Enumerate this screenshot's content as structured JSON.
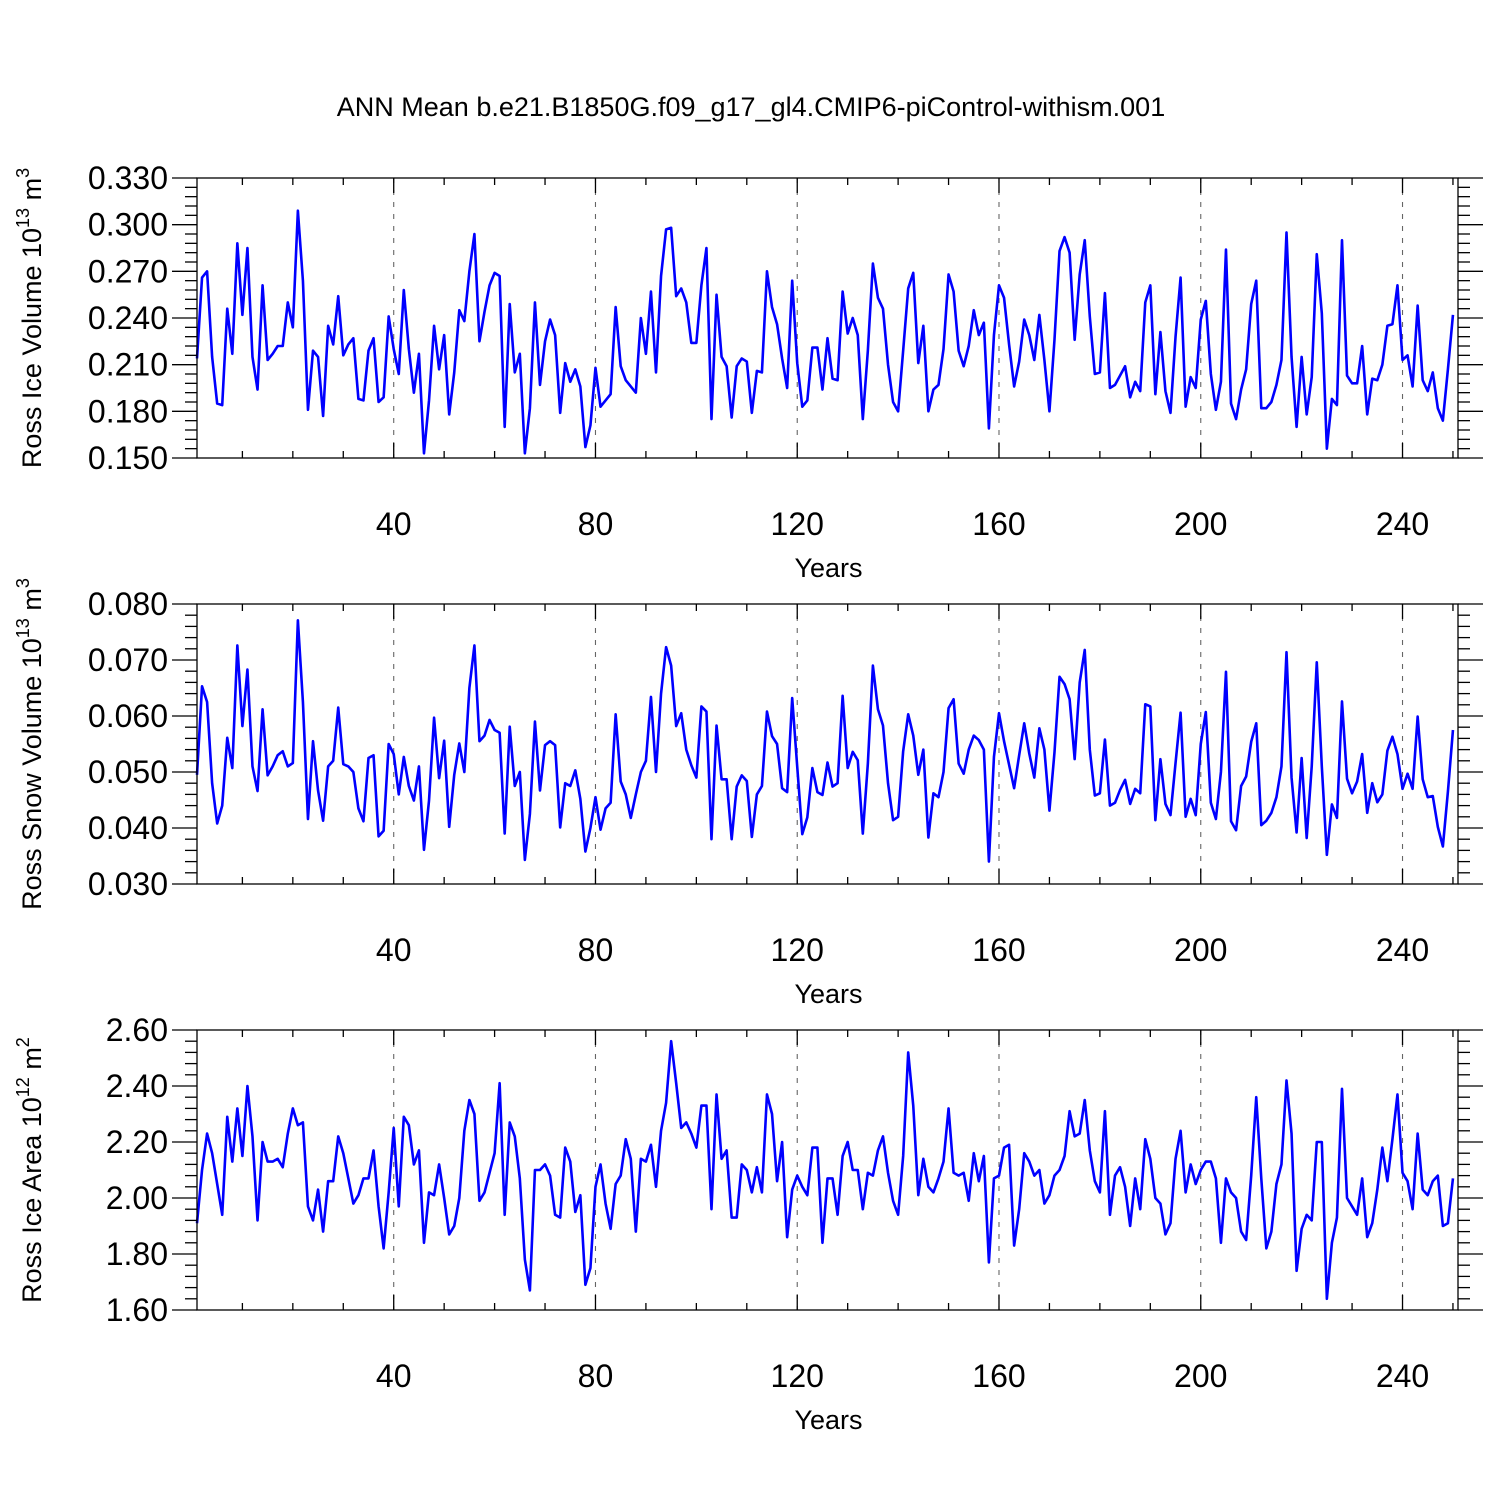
{
  "title": "ANN Mean b.e21.B1850G.f09_g17_gl4.CMIP6-piControl-withism.001",
  "line_color": "#0000ff",
  "chart_data": [
    {
      "type": "line",
      "xlabel": "Years",
      "ylabel": {
        "text": "Ross Ice Volume 10",
        "sup": "13",
        "unit": " m",
        "unit_sup": "3"
      },
      "xlim": [
        1,
        251
      ],
      "ylim": [
        0.15,
        0.33
      ],
      "xticks": [
        40,
        80,
        120,
        160,
        200,
        240
      ],
      "yticks": [
        "0.150",
        "0.180",
        "0.210",
        "0.240",
        "0.270",
        "0.300",
        "0.330"
      ],
      "grid": "dashed vertical lines at labeled x ticks",
      "series": [
        {
          "values": [
            0.214,
            0.266,
            0.27,
            0.215,
            0.185,
            0.184,
            0.246,
            0.217,
            0.288,
            0.242,
            0.285,
            0.215,
            0.194,
            0.261,
            0.213,
            0.217,
            0.222,
            0.222,
            0.25,
            0.234,
            0.309,
            0.264,
            0.181,
            0.219,
            0.215,
            0.177,
            0.235,
            0.223,
            0.254,
            0.216,
            0.223,
            0.227,
            0.188,
            0.187,
            0.219,
            0.227,
            0.186,
            0.189,
            0.241,
            0.22,
            0.204,
            0.258,
            0.22,
            0.192,
            0.217,
            0.153,
            0.187,
            0.235,
            0.207,
            0.229,
            0.178,
            0.205,
            0.245,
            0.238,
            0.27,
            0.294,
            0.225,
            0.244,
            0.261,
            0.269,
            0.267,
            0.17,
            0.249,
            0.205,
            0.217,
            0.153,
            0.182,
            0.25,
            0.197,
            0.225,
            0.239,
            0.229,
            0.179,
            0.211,
            0.199,
            0.207,
            0.196,
            0.157,
            0.171,
            0.208,
            0.183,
            0.187,
            0.191,
            0.247,
            0.209,
            0.2,
            0.196,
            0.192,
            0.24,
            0.217,
            0.257,
            0.205,
            0.267,
            0.297,
            0.298,
            0.254,
            0.259,
            0.25,
            0.224,
            0.224,
            0.261,
            0.285,
            0.175,
            0.255,
            0.215,
            0.209,
            0.176,
            0.209,
            0.214,
            0.212,
            0.179,
            0.206,
            0.205,
            0.27,
            0.247,
            0.236,
            0.214,
            0.195,
            0.264,
            0.211,
            0.183,
            0.187,
            0.221,
            0.221,
            0.194,
            0.227,
            0.201,
            0.2,
            0.257,
            0.23,
            0.24,
            0.229,
            0.175,
            0.219,
            0.275,
            0.253,
            0.246,
            0.21,
            0.186,
            0.18,
            0.219,
            0.259,
            0.269,
            0.211,
            0.235,
            0.18,
            0.194,
            0.197,
            0.22,
            0.268,
            0.257,
            0.219,
            0.209,
            0.222,
            0.245,
            0.229,
            0.237,
            0.169,
            0.229,
            0.261,
            0.253,
            0.223,
            0.196,
            0.212,
            0.239,
            0.229,
            0.213,
            0.242,
            0.213,
            0.18,
            0.226,
            0.283,
            0.292,
            0.282,
            0.226,
            0.268,
            0.29,
            0.241,
            0.204,
            0.205,
            0.256,
            0.195,
            0.197,
            0.203,
            0.209,
            0.189,
            0.199,
            0.193,
            0.25,
            0.261,
            0.191,
            0.231,
            0.193,
            0.179,
            0.228,
            0.266,
            0.183,
            0.202,
            0.195,
            0.239,
            0.251,
            0.204,
            0.181,
            0.199,
            0.284,
            0.185,
            0.175,
            0.194,
            0.207,
            0.249,
            0.264,
            0.182,
            0.182,
            0.186,
            0.197,
            0.213,
            0.295,
            0.215,
            0.17,
            0.215,
            0.178,
            0.202,
            0.281,
            0.243,
            0.156,
            0.188,
            0.184,
            0.29,
            0.203,
            0.198,
            0.198,
            0.222,
            0.178,
            0.201,
            0.2,
            0.21,
            0.235,
            0.236,
            0.261,
            0.213,
            0.216,
            0.196,
            0.248,
            0.2,
            0.193,
            0.205,
            0.182,
            0.174,
            0.207,
            0.242
          ]
        }
      ]
    },
    {
      "type": "line",
      "xlabel": "Years",
      "ylabel": {
        "text": "Ross Snow Volume 10",
        "sup": "13",
        "unit": " m",
        "unit_sup": "3"
      },
      "xlim": [
        1,
        251
      ],
      "ylim": [
        0.03,
        0.08
      ],
      "xticks": [
        40,
        80,
        120,
        160,
        200,
        240
      ],
      "yticks": [
        "0.030",
        "0.040",
        "0.050",
        "0.060",
        "0.070",
        "0.080"
      ],
      "grid": "dashed vertical lines at labeled x ticks",
      "series": [
        {
          "values": [
            0.0495,
            0.0653,
            0.0625,
            0.048,
            0.0408,
            0.044,
            0.0561,
            0.0507,
            0.0726,
            0.0582,
            0.0683,
            0.051,
            0.0466,
            0.0612,
            0.0494,
            0.051,
            0.053,
            0.0537,
            0.051,
            0.0516,
            0.0771,
            0.0625,
            0.0416,
            0.0555,
            0.0467,
            0.0413,
            0.051,
            0.052,
            0.0615,
            0.0514,
            0.051,
            0.05,
            0.0435,
            0.0412,
            0.0525,
            0.053,
            0.0385,
            0.0395,
            0.055,
            0.0532,
            0.046,
            0.0527,
            0.0475,
            0.0449,
            0.051,
            0.0361,
            0.0449,
            0.0597,
            0.0489,
            0.0556,
            0.0402,
            0.0495,
            0.0551,
            0.05,
            0.065,
            0.0726,
            0.0555,
            0.0565,
            0.0593,
            0.0575,
            0.057,
            0.039,
            0.0581,
            0.0475,
            0.05,
            0.0343,
            0.0425,
            0.059,
            0.0467,
            0.0548,
            0.0555,
            0.0548,
            0.0401,
            0.048,
            0.0475,
            0.0503,
            0.0452,
            0.0358,
            0.04,
            0.0455,
            0.0397,
            0.0435,
            0.0445,
            0.0603,
            0.0483,
            0.046,
            0.0418,
            0.046,
            0.05,
            0.052,
            0.0634,
            0.05,
            0.064,
            0.0723,
            0.069,
            0.0582,
            0.0605,
            0.054,
            0.0512,
            0.049,
            0.0617,
            0.0608,
            0.038,
            0.0583,
            0.0487,
            0.0487,
            0.038,
            0.0474,
            0.0494,
            0.0484,
            0.0384,
            0.046,
            0.0475,
            0.0608,
            0.0564,
            0.055,
            0.0471,
            0.0464,
            0.0632,
            0.0509,
            0.0389,
            0.0419,
            0.0507,
            0.0464,
            0.0459,
            0.0517,
            0.0474,
            0.048,
            0.0636,
            0.0507,
            0.0536,
            0.0521,
            0.039,
            0.0515,
            0.069,
            0.0612,
            0.0583,
            0.048,
            0.0414,
            0.042,
            0.0537,
            0.0603,
            0.0565,
            0.0495,
            0.054,
            0.0383,
            0.0462,
            0.0455,
            0.05,
            0.0614,
            0.063,
            0.0515,
            0.0497,
            0.054,
            0.0565,
            0.0557,
            0.054,
            0.034,
            0.0527,
            0.0605,
            0.0555,
            0.0513,
            0.0471,
            0.053,
            0.0587,
            0.0533,
            0.049,
            0.0578,
            0.054,
            0.0431,
            0.0535,
            0.067,
            0.0657,
            0.063,
            0.0523,
            0.066,
            0.0718,
            0.054,
            0.0458,
            0.0462,
            0.0558,
            0.044,
            0.0445,
            0.0468,
            0.0486,
            0.0443,
            0.047,
            0.0462,
            0.0621,
            0.0617,
            0.0414,
            0.0523,
            0.0443,
            0.0423,
            0.0516,
            0.0606,
            0.042,
            0.0452,
            0.0423,
            0.055,
            0.0607,
            0.0445,
            0.0416,
            0.05,
            0.0679,
            0.0412,
            0.0396,
            0.0475,
            0.0492,
            0.0554,
            0.0587,
            0.0405,
            0.0413,
            0.0427,
            0.0455,
            0.051,
            0.0714,
            0.049,
            0.0392,
            0.0525,
            0.0382,
            0.051,
            0.0696,
            0.051,
            0.0352,
            0.0442,
            0.0418,
            0.0626,
            0.0488,
            0.0462,
            0.0483,
            0.0532,
            0.0427,
            0.048,
            0.0446,
            0.046,
            0.0538,
            0.0563,
            0.0532,
            0.047,
            0.0497,
            0.047,
            0.0599,
            0.0487,
            0.0455,
            0.0457,
            0.0402,
            0.0367,
            0.0465,
            0.0575
          ]
        }
      ]
    },
    {
      "type": "line",
      "xlabel": "Years",
      "ylabel": {
        "text": "Ross Ice Area 10",
        "sup": "12",
        "unit": " m",
        "unit_sup": "2"
      },
      "xlim": [
        1,
        251
      ],
      "ylim": [
        1.6,
        2.6
      ],
      "xticks": [
        40,
        80,
        120,
        160,
        200,
        240
      ],
      "yticks": [
        "1.60",
        "1.80",
        "2.00",
        "2.20",
        "2.40",
        "2.60"
      ],
      "grid": "dashed vertical lines at labeled x ticks",
      "series": [
        {
          "values": [
            1.91,
            2.1,
            2.23,
            2.16,
            2.05,
            1.94,
            2.29,
            2.13,
            2.32,
            2.15,
            2.4,
            2.22,
            1.92,
            2.2,
            2.13,
            2.13,
            2.14,
            2.11,
            2.23,
            2.32,
            2.26,
            2.27,
            1.97,
            1.92,
            2.03,
            1.88,
            2.06,
            2.06,
            2.22,
            2.16,
            2.07,
            1.98,
            2.01,
            2.07,
            2.07,
            2.17,
            1.97,
            1.82,
            2.02,
            2.25,
            1.97,
            2.29,
            2.26,
            2.12,
            2.17,
            1.84,
            2.02,
            2.01,
            2.12,
            2.0,
            1.87,
            1.9,
            2.0,
            2.24,
            2.35,
            2.3,
            1.99,
            2.02,
            2.09,
            2.16,
            2.41,
            1.94,
            2.27,
            2.22,
            2.07,
            1.78,
            1.67,
            2.1,
            2.1,
            2.12,
            2.08,
            1.94,
            1.93,
            2.18,
            2.13,
            1.95,
            2.01,
            1.69,
            1.75,
            2.04,
            2.12,
            1.98,
            1.89,
            2.05,
            2.08,
            2.21,
            2.14,
            1.88,
            2.14,
            2.13,
            2.19,
            2.04,
            2.24,
            2.34,
            2.56,
            2.41,
            2.25,
            2.27,
            2.23,
            2.18,
            2.33,
            2.33,
            1.96,
            2.37,
            2.14,
            2.17,
            1.93,
            1.93,
            2.12,
            2.1,
            2.02,
            2.11,
            2.02,
            2.37,
            2.3,
            2.06,
            2.2,
            1.86,
            2.03,
            2.08,
            2.04,
            2.01,
            2.18,
            2.18,
            1.84,
            2.07,
            2.07,
            1.94,
            2.15,
            2.2,
            2.1,
            2.1,
            1.96,
            2.09,
            2.08,
            2.17,
            2.22,
            2.09,
            1.99,
            1.94,
            2.15,
            2.52,
            2.33,
            2.01,
            2.14,
            2.04,
            2.02,
            2.07,
            2.13,
            2.32,
            2.09,
            2.08,
            2.09,
            1.99,
            2.16,
            2.06,
            2.15,
            1.77,
            2.07,
            2.08,
            2.18,
            2.19,
            1.83,
            1.96,
            2.16,
            2.13,
            2.08,
            2.1,
            1.98,
            2.01,
            2.08,
            2.1,
            2.15,
            2.31,
            2.22,
            2.23,
            2.35,
            2.17,
            2.06,
            2.02,
            2.31,
            1.94,
            2.08,
            2.11,
            2.04,
            1.9,
            2.07,
            1.96,
            2.21,
            2.14,
            2.0,
            1.98,
            1.87,
            1.91,
            2.14,
            2.24,
            2.02,
            2.12,
            2.05,
            2.1,
            2.13,
            2.13,
            2.07,
            1.84,
            2.07,
            2.02,
            2.0,
            1.88,
            1.85,
            2.08,
            2.36,
            2.07,
            1.82,
            1.88,
            2.05,
            2.12,
            2.42,
            2.23,
            1.74,
            1.89,
            1.94,
            1.92,
            2.2,
            2.2,
            1.64,
            1.84,
            1.93,
            2.39,
            2.0,
            1.97,
            1.94,
            2.07,
            1.86,
            1.91,
            2.03,
            2.18,
            2.06,
            2.21,
            2.37,
            2.09,
            2.06,
            1.96,
            2.23,
            2.03,
            2.01,
            2.06,
            2.08,
            1.9,
            1.91,
            2.07
          ]
        }
      ]
    }
  ]
}
